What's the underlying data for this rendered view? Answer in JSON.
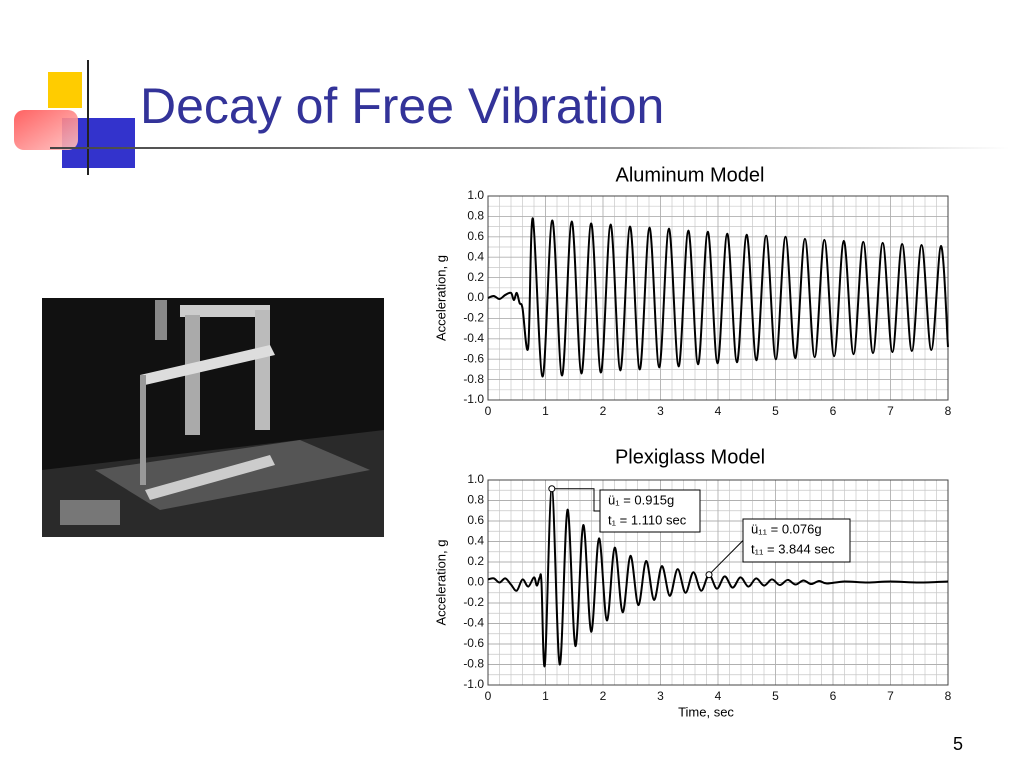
{
  "slide": {
    "title": "Decay of Free Vibration",
    "page_number": "5"
  },
  "chart_data": [
    {
      "type": "line",
      "title": "Aluminum Model",
      "ylabel": "Acceleration, g",
      "xlim": [
        0,
        8
      ],
      "ylim": [
        -1.0,
        1.0
      ],
      "xticks": [
        0,
        1,
        2,
        3,
        4,
        5,
        6,
        7,
        8
      ],
      "yticks": [
        {
          "value": 1.0,
          "label": "1.0"
        },
        0.8,
        0.6,
        0.4,
        0.2,
        {
          "value": 0.0,
          "label": "0.0"
        },
        -0.2,
        -0.4,
        -0.6,
        -0.8,
        {
          "value": -1.0,
          "label": "-1.0"
        }
      ],
      "grid": true,
      "series": [
        {
          "color": "#000000",
          "x": [
            0,
            0.1,
            0.2,
            0.3,
            0.4,
            0.45,
            0.5,
            0.55,
            0.6,
            0.7,
            0.78,
            0.949,
            1.118,
            1.287,
            1.456,
            1.625,
            1.794,
            1.963,
            2.132,
            2.301,
            2.47,
            2.639,
            2.808,
            2.977,
            3.146,
            3.315,
            3.484,
            3.653,
            3.822,
            3.991,
            4.16,
            4.329,
            4.498,
            4.667,
            4.836,
            5.005,
            5.174,
            5.343,
            5.512,
            5.681,
            5.85,
            6.019,
            6.188,
            6.357,
            6.526,
            6.695,
            6.864,
            7.033,
            7.202,
            7.371,
            7.54,
            7.709,
            7.878,
            8.0
          ],
          "values": [
            0,
            0.02,
            -0.01,
            0.03,
            0.05,
            -0.02,
            0.05,
            -0.05,
            -0.1,
            -0.48,
            0.78,
            -0.77,
            0.76,
            -0.76,
            0.75,
            -0.74,
            0.73,
            -0.73,
            0.72,
            -0.71,
            0.7,
            -0.7,
            0.69,
            -0.68,
            0.68,
            -0.67,
            0.66,
            -0.65,
            0.65,
            -0.64,
            0.63,
            -0.63,
            0.62,
            -0.61,
            0.61,
            -0.6,
            0.6,
            -0.59,
            0.58,
            -0.58,
            0.57,
            -0.57,
            0.56,
            -0.55,
            0.55,
            -0.54,
            0.54,
            -0.53,
            0.53,
            -0.52,
            0.52,
            -0.51,
            0.51,
            -0.48
          ]
        }
      ]
    },
    {
      "type": "line",
      "title": "Plexiglass Model",
      "xlabel": "Time, sec",
      "ylabel": "Acceleration, g",
      "xlim": [
        0,
        8
      ],
      "ylim": [
        -1.0,
        1.0
      ],
      "xticks": [
        0,
        1,
        2,
        3,
        4,
        5,
        6,
        7,
        8
      ],
      "yticks": [
        {
          "value": 1.0,
          "label": "1.0"
        },
        0.8,
        0.6,
        0.4,
        0.2,
        {
          "value": 0.0,
          "label": "0.0"
        },
        -0.2,
        -0.4,
        -0.6,
        -0.8,
        {
          "value": -1.0,
          "label": "-1.0"
        }
      ],
      "grid": true,
      "series": [
        {
          "color": "#000000",
          "x": [
            0,
            0.1,
            0.2,
            0.3,
            0.4,
            0.5,
            0.6,
            0.7,
            0.8,
            0.85,
            0.9,
            0.93,
            0.99,
            1.11,
            1.247,
            1.383,
            1.52,
            1.657,
            1.794,
            1.93,
            2.067,
            2.204,
            2.341,
            2.477,
            2.614,
            2.75,
            2.887,
            3.024,
            3.161,
            3.297,
            3.434,
            3.571,
            3.707,
            3.844,
            3.981,
            4.117,
            4.254,
            4.391,
            4.528,
            4.664,
            4.801,
            4.938,
            5.075,
            5.211,
            5.348,
            5.485,
            5.621,
            5.758,
            5.895,
            6.2,
            6.6,
            7.0,
            7.5,
            8.0
          ],
          "values": [
            0.03,
            0.04,
            0.0,
            0.04,
            -0.02,
            -0.08,
            0.03,
            -0.04,
            0.05,
            -0.03,
            0.05,
            0.0,
            -0.8,
            0.915,
            -0.8,
            0.71,
            -0.62,
            0.56,
            -0.48,
            0.43,
            -0.37,
            0.34,
            -0.29,
            0.26,
            -0.22,
            0.21,
            -0.17,
            0.16,
            -0.13,
            0.13,
            -0.1,
            0.1,
            -0.08,
            0.076,
            -0.06,
            0.06,
            -0.05,
            0.05,
            -0.04,
            0.04,
            -0.03,
            0.03,
            -0.025,
            0.025,
            -0.02,
            0.02,
            -0.015,
            0.015,
            -0.01,
            0.01,
            0.0,
            0.01,
            0.0,
            0.01
          ]
        }
      ],
      "annotations": [
        {
          "x": 1.11,
          "y": 0.915,
          "lines": [
            "ü₁ = 0.915g",
            "t₁ = 1.110 sec"
          ]
        },
        {
          "x": 3.844,
          "y": 0.076,
          "lines": [
            "ü₁₁ = 0.076g",
            "t₁₁ = 3.844 sec"
          ]
        }
      ]
    }
  ]
}
